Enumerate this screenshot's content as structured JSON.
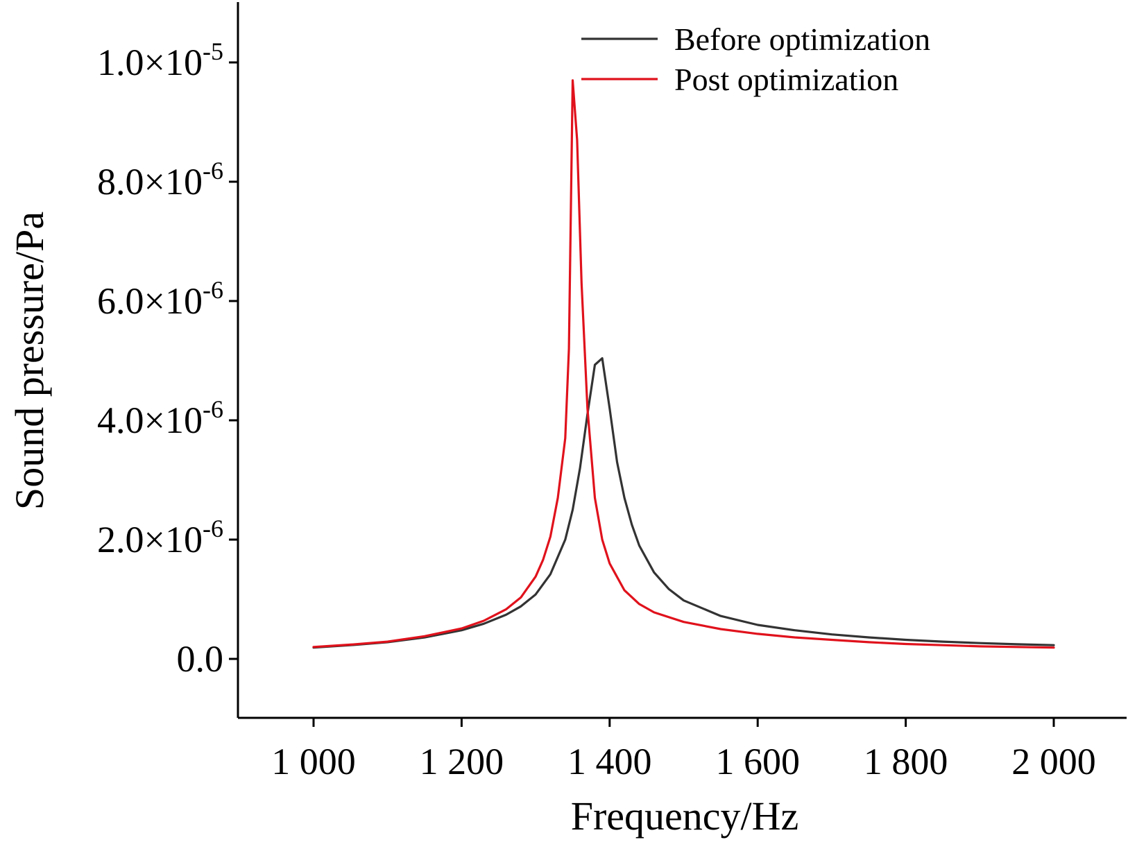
{
  "chart_data": {
    "type": "line",
    "xlabel": "Frequency/Hz",
    "ylabel": "Sound pressure/Pa",
    "xlim": [
      900,
      2100
    ],
    "ylim": [
      -1e-06,
      1.1e-05
    ],
    "x_ticks": [
      {
        "value": 1000,
        "label": "1 000"
      },
      {
        "value": 1200,
        "label": "1 200"
      },
      {
        "value": 1400,
        "label": "1 400"
      },
      {
        "value": 1600,
        "label": "1 600"
      },
      {
        "value": 1800,
        "label": "1 800"
      },
      {
        "value": 2000,
        "label": "2 000"
      }
    ],
    "y_ticks": [
      {
        "value": 0,
        "mantissa": "0.0",
        "exponent": ""
      },
      {
        "value": 2e-06,
        "mantissa": "2.0×10",
        "exponent": "-6"
      },
      {
        "value": 4e-06,
        "mantissa": "4.0×10",
        "exponent": "-6"
      },
      {
        "value": 6e-06,
        "mantissa": "6.0×10",
        "exponent": "-6"
      },
      {
        "value": 8e-06,
        "mantissa": "8.0×10",
        "exponent": "-6"
      },
      {
        "value": 1e-05,
        "mantissa": "1.0×10",
        "exponent": "-5"
      }
    ],
    "legend_position": "top-right",
    "grid": false,
    "series": [
      {
        "name": "Before optimization",
        "color": "#333333",
        "points": [
          [
            1000,
            1.9e-07
          ],
          [
            1050,
            2.3e-07
          ],
          [
            1100,
            2.8e-07
          ],
          [
            1150,
            3.6e-07
          ],
          [
            1200,
            4.8e-07
          ],
          [
            1230,
            5.9e-07
          ],
          [
            1260,
            7.4e-07
          ],
          [
            1280,
            8.8e-07
          ],
          [
            1300,
            1.08e-06
          ],
          [
            1320,
            1.42e-06
          ],
          [
            1340,
            2e-06
          ],
          [
            1350,
            2.5e-06
          ],
          [
            1360,
            3.2e-06
          ],
          [
            1370,
            4.1e-06
          ],
          [
            1380,
            4.93e-06
          ],
          [
            1390,
            5.04e-06
          ],
          [
            1400,
            4.2e-06
          ],
          [
            1410,
            3.3e-06
          ],
          [
            1420,
            2.7e-06
          ],
          [
            1430,
            2.25e-06
          ],
          [
            1440,
            1.9e-06
          ],
          [
            1460,
            1.45e-06
          ],
          [
            1480,
            1.17e-06
          ],
          [
            1500,
            9.8e-07
          ],
          [
            1550,
            7.2e-07
          ],
          [
            1600,
            5.7e-07
          ],
          [
            1650,
            4.8e-07
          ],
          [
            1700,
            4.1e-07
          ],
          [
            1750,
            3.6e-07
          ],
          [
            1800,
            3.2e-07
          ],
          [
            1850,
            2.9e-07
          ],
          [
            1900,
            2.65e-07
          ],
          [
            1950,
            2.45e-07
          ],
          [
            2000,
            2.3e-07
          ]
        ]
      },
      {
        "name": "Post optimization",
        "color": "#e0121c",
        "points": [
          [
            1000,
            2e-07
          ],
          [
            1050,
            2.4e-07
          ],
          [
            1100,
            2.9e-07
          ],
          [
            1150,
            3.8e-07
          ],
          [
            1200,
            5.1e-07
          ],
          [
            1230,
            6.4e-07
          ],
          [
            1260,
            8.3e-07
          ],
          [
            1280,
            1.03e-06
          ],
          [
            1300,
            1.38e-06
          ],
          [
            1310,
            1.66e-06
          ],
          [
            1320,
            2.05e-06
          ],
          [
            1330,
            2.7e-06
          ],
          [
            1340,
            3.7e-06
          ],
          [
            1345,
            5.2e-06
          ],
          [
            1350,
            9.7e-06
          ],
          [
            1356,
            8.7e-06
          ],
          [
            1362,
            6.3e-06
          ],
          [
            1370,
            4.2e-06
          ],
          [
            1380,
            2.7e-06
          ],
          [
            1390,
            2e-06
          ],
          [
            1400,
            1.6e-06
          ],
          [
            1420,
            1.15e-06
          ],
          [
            1440,
            9.2e-07
          ],
          [
            1460,
            7.8e-07
          ],
          [
            1500,
            6.2e-07
          ],
          [
            1550,
            5e-07
          ],
          [
            1600,
            4.2e-07
          ],
          [
            1650,
            3.6e-07
          ],
          [
            1700,
            3.2e-07
          ],
          [
            1750,
            2.8e-07
          ],
          [
            1800,
            2.5e-07
          ],
          [
            1850,
            2.3e-07
          ],
          [
            1900,
            2.1e-07
          ],
          [
            1950,
            2e-07
          ],
          [
            2000,
            1.9e-07
          ]
        ]
      }
    ]
  }
}
